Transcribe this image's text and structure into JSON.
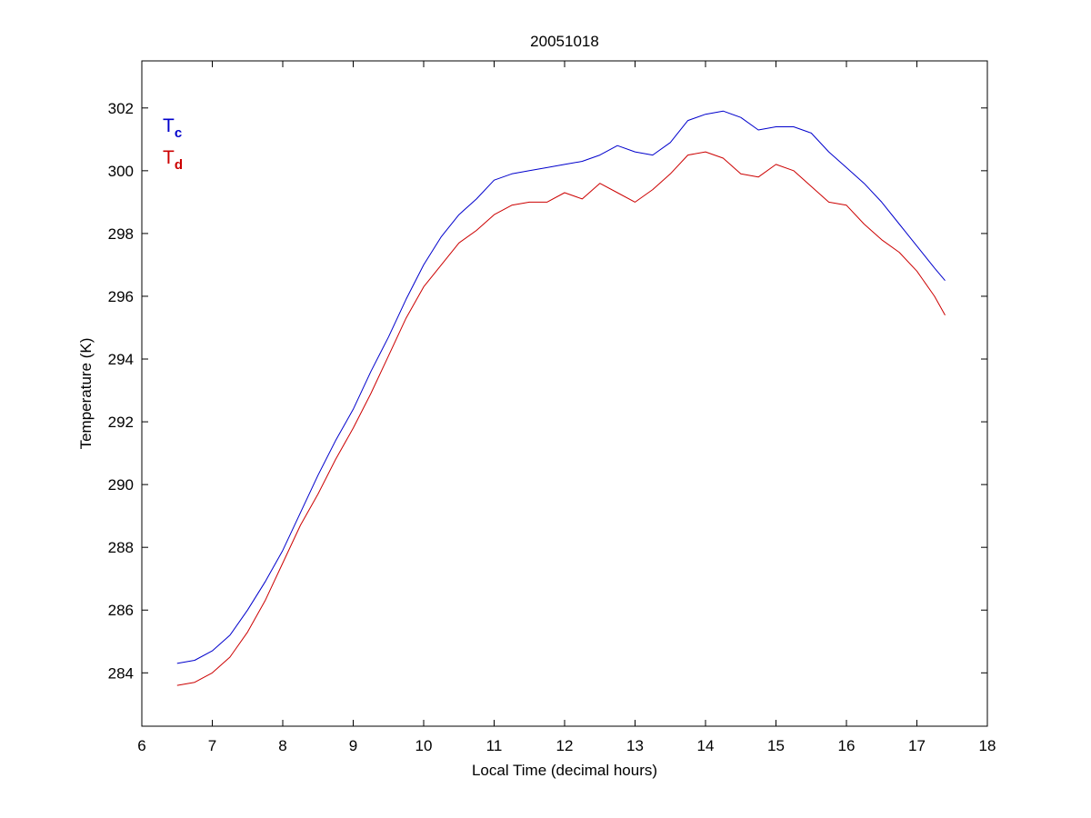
{
  "chart_data": {
    "type": "line",
    "title": "20051018",
    "xlabel": "Local Time (decimal hours)",
    "ylabel": "Temperature (K)",
    "xlim": [
      6,
      18
    ],
    "ylim": [
      282.3,
      303.5
    ],
    "xticks": [
      6,
      7,
      8,
      9,
      10,
      11,
      12,
      13,
      14,
      15,
      16,
      17,
      18
    ],
    "yticks": [
      284,
      286,
      288,
      290,
      292,
      294,
      296,
      298,
      300,
      302
    ],
    "grid": false,
    "legend": {
      "placement": "top-left",
      "entries": [
        {
          "main": "T",
          "sub": "c",
          "color": "#0000cc"
        },
        {
          "main": "T",
          "sub": "d",
          "color": "#cc0000"
        }
      ]
    },
    "series": [
      {
        "key": "Tc",
        "color": "#0000cc",
        "x": [
          6.5,
          6.75,
          7.0,
          7.25,
          7.5,
          7.75,
          8.0,
          8.25,
          8.5,
          8.75,
          9.0,
          9.25,
          9.5,
          9.75,
          10.0,
          10.25,
          10.5,
          10.75,
          11.0,
          11.25,
          11.5,
          11.75,
          12.0,
          12.25,
          12.5,
          12.75,
          13.0,
          13.25,
          13.5,
          13.75,
          14.0,
          14.25,
          14.5,
          14.75,
          15.0,
          15.25,
          15.5,
          15.75,
          16.0,
          16.25,
          16.5,
          16.75,
          17.0,
          17.25,
          17.4
        ],
        "y": [
          284.3,
          284.4,
          284.7,
          285.2,
          286.0,
          286.9,
          287.9,
          289.1,
          290.3,
          291.4,
          292.4,
          293.6,
          294.7,
          295.9,
          297.0,
          297.9,
          298.6,
          299.1,
          299.7,
          299.9,
          300.0,
          300.1,
          300.2,
          300.3,
          300.5,
          300.8,
          300.6,
          300.5,
          300.9,
          301.6,
          301.8,
          301.9,
          301.7,
          301.3,
          301.4,
          301.4,
          301.2,
          300.6,
          300.1,
          299.6,
          299.0,
          298.3,
          297.6,
          296.9,
          296.5
        ]
      },
      {
        "key": "Td",
        "color": "#cc0000",
        "x": [
          6.5,
          6.75,
          7.0,
          7.25,
          7.5,
          7.75,
          8.0,
          8.25,
          8.5,
          8.75,
          9.0,
          9.25,
          9.5,
          9.75,
          10.0,
          10.25,
          10.5,
          10.75,
          11.0,
          11.25,
          11.5,
          11.75,
          12.0,
          12.25,
          12.5,
          12.75,
          13.0,
          13.25,
          13.5,
          13.75,
          14.0,
          14.25,
          14.5,
          14.75,
          15.0,
          15.25,
          15.5,
          15.75,
          16.0,
          16.25,
          16.5,
          16.75,
          17.0,
          17.25,
          17.4
        ],
        "y": [
          283.6,
          283.7,
          284.0,
          284.5,
          285.3,
          286.3,
          287.5,
          288.7,
          289.7,
          290.8,
          291.8,
          292.9,
          294.1,
          295.3,
          296.3,
          297.0,
          297.7,
          298.1,
          298.6,
          298.9,
          299.0,
          299.0,
          299.3,
          299.1,
          299.6,
          299.3,
          299.0,
          299.4,
          299.9,
          300.5,
          300.6,
          300.4,
          299.9,
          299.8,
          300.2,
          300.0,
          299.5,
          299.0,
          298.9,
          298.3,
          297.8,
          297.4,
          296.8,
          296.0,
          295.4
        ]
      }
    ]
  }
}
